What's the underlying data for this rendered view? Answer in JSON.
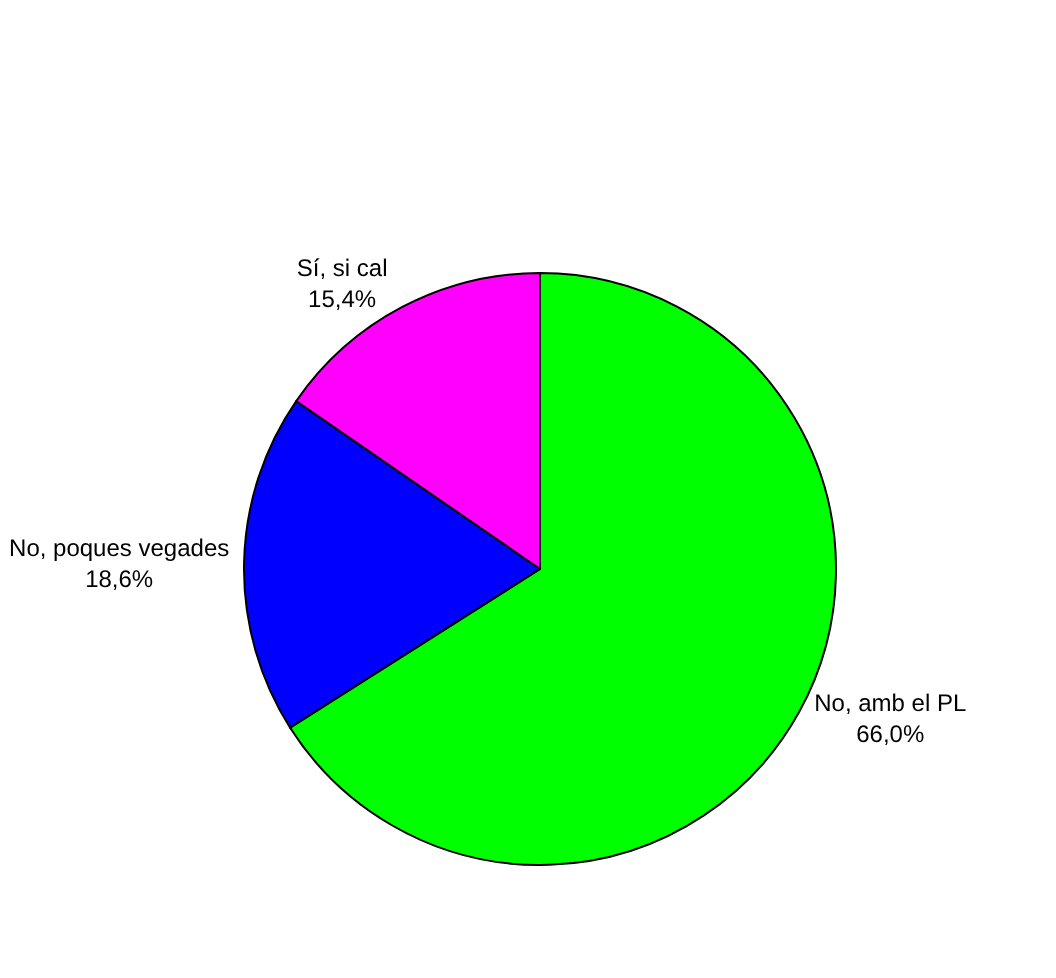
{
  "chart_data": {
    "type": "pie",
    "categories": [
      "No, amb el PL",
      "No, poques vegades",
      "Sí, si cal"
    ],
    "values": [
      66.0,
      18.6,
      15.4
    ],
    "colors": [
      "#00ff00",
      "#0000ff",
      "#ff00ff"
    ],
    "value_labels": [
      "66,0%",
      "18,6%",
      "15,4%"
    ],
    "legend": false
  }
}
